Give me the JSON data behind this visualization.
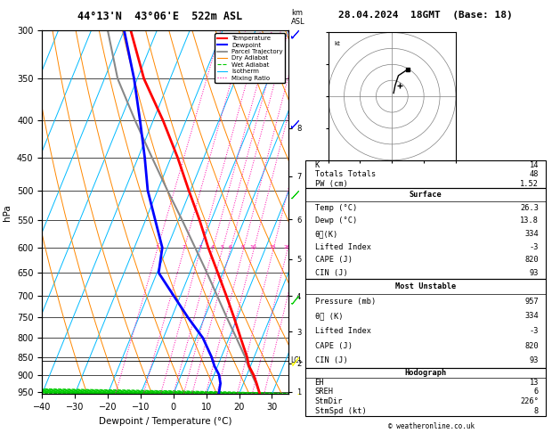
{
  "title_left": "44°13'N  43°06'E  522m ASL",
  "title_right": "28.04.2024  18GMT  (Base: 18)",
  "xlabel": "Dewpoint / Temperature (°C)",
  "ylabel_left": "hPa",
  "pressure_levels": [
    300,
    350,
    400,
    450,
    500,
    550,
    600,
    650,
    700,
    750,
    800,
    850,
    900,
    950
  ],
  "pressure_min": 300,
  "pressure_max": 957,
  "temp_min": -40,
  "temp_max": 35,
  "km_labels": [
    1,
    2,
    3,
    4,
    5,
    6,
    7,
    8
  ],
  "km_pressures": [
    950,
    868,
    784,
    700,
    622,
    548,
    478,
    410
  ],
  "lcl_pressure": 860,
  "lcl_label": "LCL",
  "temp_profile": {
    "pressure": [
      957,
      925,
      900,
      875,
      850,
      800,
      750,
      700,
      650,
      600,
      550,
      500,
      450,
      400,
      350,
      300
    ],
    "temp": [
      26.3,
      24.0,
      22.0,
      19.5,
      17.8,
      13.5,
      9.0,
      4.0,
      -1.5,
      -7.5,
      -13.5,
      -20.5,
      -28.0,
      -37.0,
      -48.0,
      -58.0
    ],
    "color": "#ff0000",
    "linewidth": 2.0
  },
  "dewpoint_profile": {
    "pressure": [
      957,
      925,
      900,
      875,
      850,
      800,
      750,
      700,
      650,
      600,
      550,
      500,
      450,
      400,
      350,
      300
    ],
    "temp": [
      13.8,
      13.0,
      11.5,
      9.0,
      7.0,
      2.0,
      -5.0,
      -12.0,
      -19.5,
      -21.5,
      -27.0,
      -33.0,
      -38.0,
      -44.0,
      -51.0,
      -60.0
    ],
    "color": "#0000ff",
    "linewidth": 2.0
  },
  "parcel_profile": {
    "pressure": [
      957,
      925,
      900,
      875,
      860,
      850,
      800,
      750,
      700,
      650,
      600,
      550,
      500,
      450,
      400,
      350,
      300
    ],
    "temp": [
      26.3,
      23.8,
      21.5,
      19.3,
      18.0,
      17.2,
      12.2,
      6.8,
      1.2,
      -4.8,
      -11.5,
      -18.8,
      -27.0,
      -35.8,
      -45.5,
      -56.0,
      -65.0
    ],
    "color": "#888888",
    "linewidth": 1.5
  },
  "background_color": "#ffffff",
  "isotherm_color": "#00bbff",
  "dry_adiabat_color": "#ff8800",
  "wet_adiabat_color": "#00cc00",
  "mixing_ratio_color": "#ff00aa",
  "skew": 45.0,
  "stats": {
    "K": 14,
    "Totals Totals": 48,
    "PW (cm)": 1.52,
    "Surface_Temp": 26.3,
    "Surface_Dewp": 13.8,
    "Surface_the": 334,
    "Surface_LI": -3,
    "Surface_CAPE": 820,
    "Surface_CIN": 93,
    "MU_Pressure": 957,
    "MU_the": 334,
    "MU_LI": -3,
    "MU_CAPE": 820,
    "MU_CIN": 93,
    "Hodo_EH": 13,
    "Hodo_SREH": 6,
    "Hodo_StmDir": "226°",
    "Hodo_StmSpd": 8
  }
}
